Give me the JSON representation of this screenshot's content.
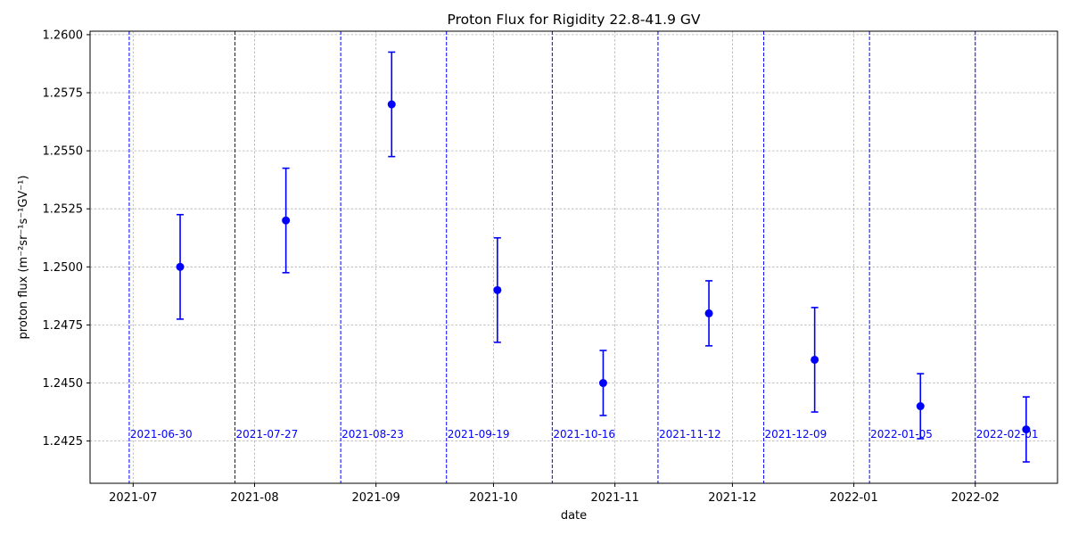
{
  "chart_data": {
    "type": "scatter",
    "title": "Proton Flux for Rigidity 22.8-41.9 GV",
    "xlabel": "date",
    "ylabel": "proton flux (m⁻²sr⁻¹s⁻¹GV⁻¹)",
    "x_range": [
      "2021-06-20",
      "2022-02-22"
    ],
    "ylim": [
      1.24068,
      1.26015
    ],
    "y_ticks": [
      1.2425,
      1.245,
      1.2475,
      1.25,
      1.2525,
      1.255,
      1.2575,
      1.26
    ],
    "y_tick_labels": [
      "1.2425",
      "1.2450",
      "1.2475",
      "1.2500",
      "1.2525",
      "1.2550",
      "1.2575",
      "1.2600"
    ],
    "x_ticks": [
      "2021-07-01",
      "2021-08-01",
      "2021-09-01",
      "2021-10-01",
      "2021-11-01",
      "2021-12-01",
      "2022-01-01",
      "2022-02-01"
    ],
    "x_tick_labels": [
      "2021-07",
      "2021-08",
      "2021-09",
      "2021-10",
      "2021-11",
      "2021-12",
      "2022-01",
      "2022-02"
    ],
    "grid": true,
    "series": [
      {
        "color": "#0000ff",
        "marker": "circle",
        "points": [
          {
            "x": "2021-07-13",
            "y": 1.25,
            "err": 0.00225
          },
          {
            "x": "2021-08-09",
            "y": 1.252,
            "err": 0.00225
          },
          {
            "x": "2021-09-05",
            "y": 1.257,
            "err": 0.00225
          },
          {
            "x": "2021-10-02",
            "y": 1.249,
            "err": 0.00225
          },
          {
            "x": "2021-10-29",
            "y": 1.245,
            "err": 0.0014
          },
          {
            "x": "2021-11-25",
            "y": 1.248,
            "err": 0.0014
          },
          {
            "x": "2021-12-22",
            "y": 1.246,
            "err": 0.00225
          },
          {
            "x": "2022-01-18",
            "y": 1.244,
            "err": 0.0014
          },
          {
            "x": "2022-02-14",
            "y": 1.243,
            "err": 0.0014
          }
        ]
      }
    ],
    "markers": {
      "color": "#0000ff",
      "style": "dashed",
      "dates": [
        "2021-06-30",
        "2021-07-27",
        "2021-08-23",
        "2021-09-19",
        "2021-10-16",
        "2021-11-12",
        "2021-12-09",
        "2022-01-05",
        "2022-02-01"
      ],
      "labels": [
        "2021-06-30",
        "2021-07-27",
        "2021-08-23",
        "2021-09-19",
        "2021-10-16",
        "2021-11-12",
        "2021-12-09",
        "2022-01-05",
        "2022-02-01"
      ],
      "label_y": 1.2428
    }
  }
}
